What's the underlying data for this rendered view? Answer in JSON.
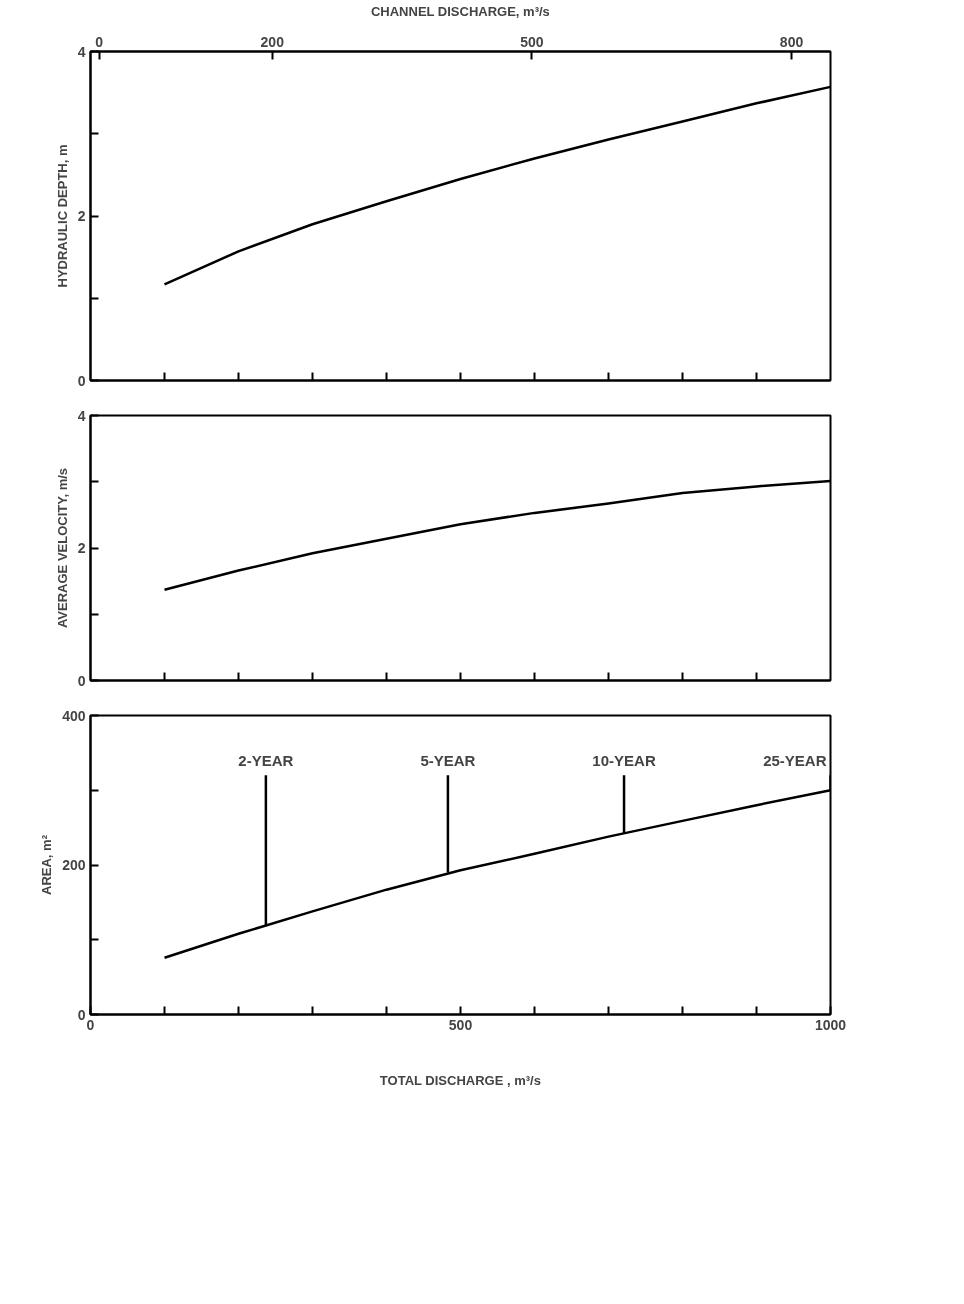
{
  "chart_data": [
    {
      "type": "line",
      "x2label": "CHANNEL DISCHARGE, m³/s",
      "ylabel": "HYDRAULIC DEPTH, m",
      "x": [
        100,
        200,
        300,
        400,
        500,
        600,
        700,
        800,
        900,
        1000
      ],
      "series": [
        {
          "color": "#000000",
          "values": [
            1.17,
            1.57,
            1.9,
            2.18,
            2.45,
            2.7,
            2.93,
            3.15,
            3.37,
            3.57
          ]
        }
      ],
      "xlim": [
        0,
        1000
      ],
      "xticks": [
        {
          "value": 100,
          "label": null
        },
        {
          "value": 200,
          "label": null
        },
        {
          "value": 300,
          "label": null
        },
        {
          "value": 400,
          "label": null
        },
        {
          "value": 500,
          "label": null
        },
        {
          "value": 600,
          "label": null
        },
        {
          "value": 700,
          "label": null
        },
        {
          "value": 800,
          "label": null
        },
        {
          "value": 900,
          "label": null
        }
      ],
      "x2lim": [
        -10,
        845
      ],
      "x2ticks": [
        0,
        200,
        500,
        800
      ],
      "ylim": [
        0,
        4
      ],
      "yticks": [
        0,
        {
          "value": 1,
          "label": null
        },
        2,
        {
          "value": 3,
          "label": null
        },
        4
      ],
      "tick_labels": "y"
    },
    {
      "type": "line",
      "ylabel": "AVERAGE VELOCITY, m/s",
      "x": [
        100,
        200,
        300,
        400,
        500,
        600,
        700,
        800,
        900,
        1000
      ],
      "series": [
        {
          "color": "#000000",
          "values": [
            1.37,
            1.66,
            1.92,
            2.14,
            2.36,
            2.53,
            2.67,
            2.83,
            2.93,
            3.01
          ]
        }
      ],
      "xlim": [
        0,
        1000
      ],
      "xticks": [
        {
          "value": 100,
          "label": null
        },
        {
          "value": 200,
          "label": null
        },
        {
          "value": 300,
          "label": null
        },
        {
          "value": 400,
          "label": null
        },
        {
          "value": 500,
          "label": null
        },
        {
          "value": 600,
          "label": null
        },
        {
          "value": 700,
          "label": null
        },
        {
          "value": 800,
          "label": null
        },
        {
          "value": 900,
          "label": null
        }
      ],
      "ylim": [
        0,
        4
      ],
      "yticks": [
        0,
        {
          "value": 1,
          "label": null
        },
        2,
        {
          "value": 3,
          "label": null
        },
        4
      ],
      "tick_labels": "y"
    },
    {
      "type": "line",
      "xlabel": "TOTAL DISCHARGE , m³/s",
      "ylabel": "AREA, m²",
      "x": [
        100,
        200,
        300,
        400,
        500,
        600,
        700,
        800,
        900,
        1000
      ],
      "series": [
        {
          "color": "#000000",
          "values": [
            76,
            108,
            138,
            167,
            193,
            215,
            238,
            259,
            280,
            300
          ]
        }
      ],
      "xlim": [
        0,
        1000
      ],
      "xticks": [
        0,
        {
          "value": 100,
          "label": null
        },
        {
          "value": 200,
          "label": null
        },
        {
          "value": 300,
          "label": null
        },
        {
          "value": 400,
          "label": null
        },
        500,
        {
          "value": 600,
          "label": null
        },
        {
          "value": 700,
          "label": null
        },
        {
          "value": 800,
          "label": null
        },
        {
          "value": 900,
          "label": null
        },
        1000
      ],
      "ylim": [
        0,
        400
      ],
      "yticks": [
        0,
        {
          "value": 100,
          "label": null
        },
        200,
        {
          "value": 300,
          "label": null
        },
        400
      ],
      "annotations": [
        {
          "text": "2-YEAR",
          "x": 237,
          "y": 118
        },
        {
          "text": "5-YEAR",
          "x": 483,
          "y": 190
        },
        {
          "text": "10-YEAR",
          "x": 721,
          "y": 242
        },
        {
          "text": "25-YEAR",
          "x": 1000,
          "y": 300
        }
      ]
    }
  ]
}
